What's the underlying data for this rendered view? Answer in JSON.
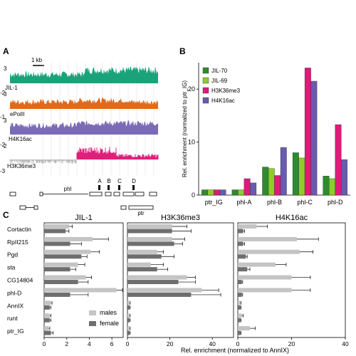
{
  "panels": {
    "A": {
      "label": "A",
      "scalebar_label": "1 kb",
      "tracks": [
        {
          "name": "JIL-1",
          "ymax": "3",
          "ymin": "-2",
          "color": "#1aa37a"
        },
        {
          "name": "ePolII",
          "ymax": "3",
          "ymin": "-1",
          "color": "#e06a1a"
        },
        {
          "name": "H4K16ac",
          "ymax": "3",
          "ymin": "-2",
          "color": "#7b6bb6"
        },
        {
          "name": "H3K36me3",
          "ymax": "2",
          "ymin": "-3",
          "color": "#e01f7a"
        }
      ],
      "amplicons": [
        "A",
        "B",
        "C",
        "D"
      ],
      "genes": [
        "phl",
        "ptr"
      ]
    },
    "B": {
      "label": "B"
    },
    "C": {
      "label": "C"
    }
  },
  "chart_data": [
    {
      "type": "bar",
      "panel": "B",
      "categories": [
        "ptr_IG",
        "phl-A",
        "phl-B",
        "phl-C",
        "phl-D"
      ],
      "series": [
        {
          "name": "JIL-70",
          "color": "#2e8b2e",
          "values": [
            1,
            1,
            5.3,
            8,
            3.6
          ]
        },
        {
          "name": "JIL-69",
          "color": "#8fcc2a",
          "values": [
            1,
            1,
            5,
            7,
            3.1
          ]
        },
        {
          "name": "H3K36me3",
          "color": "#e0197a",
          "values": [
            1,
            3.1,
            3.7,
            24,
            13.3
          ]
        },
        {
          "name": "H4K16ac",
          "color": "#6a5ab0",
          "values": [
            1,
            2.3,
            9,
            21.5,
            6.7
          ]
        }
      ],
      "ylabel": "Rel. enrichment (normalized to ptr_IG)",
      "ylim": [
        0,
        25
      ],
      "yticks": [
        "0",
        "10",
        "20"
      ],
      "legend": "top-left"
    },
    {
      "type": "bar",
      "panel": "C",
      "orientation": "horizontal",
      "categories": [
        "Cortactin",
        "RpII215",
        "Pgd",
        "sta",
        "CG14804",
        "phl-D",
        "AnnIX",
        "runt",
        "ptr_IG"
      ],
      "legend_entries": [
        {
          "name": "males",
          "color": "#c4c4c4"
        },
        {
          "name": "female",
          "color": "#6e6e6e"
        }
      ],
      "xlabel": "Rel. enrichment (normalized to AnnIX)",
      "subplots": [
        {
          "title": "JIL-1",
          "xlim": [
            0,
            7
          ],
          "xticks": [
            "0",
            "2",
            "4",
            "6"
          ],
          "males": {
            "values": [
              2.2,
              4.3,
              4.1,
              3.0,
              3.7,
              6.4,
              0.6,
              0.5,
              0.4
            ],
            "errors": [
              0.3,
              1.4,
              0.8,
              0.6,
              0.5,
              0.6,
              0.1,
              0.1,
              0.1
            ]
          },
          "female": {
            "values": [
              1.9,
              2.3,
              3.3,
              2.3,
              3.0,
              2.3,
              0.5,
              0.5,
              0.6
            ],
            "errors": [
              0.3,
              1.0,
              0.5,
              0.5,
              0.9,
              1.6,
              0.1,
              0.1,
              0.2
            ]
          }
        },
        {
          "title": "H3K36me3",
          "xlim": [
            0,
            50
          ],
          "xticks": [
            "0",
            "20",
            "40"
          ],
          "males": {
            "values": [
              21,
              21,
              14,
              11,
              28,
              35,
              1,
              1,
              1
            ],
            "errors": [
              7,
              6,
              3,
              6,
              4,
              8,
              0.3,
              0.3,
              0.3
            ]
          },
          "female": {
            "values": [
              21,
              22,
              16,
              14,
              24,
              30,
              1,
              1,
              1
            ],
            "errors": [
              9,
              4,
              6,
              5,
              8,
              14,
              0.3,
              0.3,
              0.3
            ]
          }
        },
        {
          "title": "H4K16ac",
          "xlim": [
            0,
            40
          ],
          "xticks": [
            "0",
            "20",
            "40"
          ],
          "males": {
            "values": [
              7,
              22,
              23,
              14,
              20,
              20,
              1,
              1.5,
              4.5
            ],
            "errors": [
              4,
              8,
              5,
              4,
              7,
              7,
              0.2,
              0.5,
              2
            ]
          },
          "female": {
            "values": [
              2,
              2,
              3,
              3.5,
              1.5,
              1.5,
              1,
              1,
              1
            ],
            "errors": [
              0.5,
              0.5,
              0.5,
              1,
              0.3,
              0.3,
              0.2,
              0.2,
              0.2
            ]
          }
        }
      ]
    }
  ]
}
